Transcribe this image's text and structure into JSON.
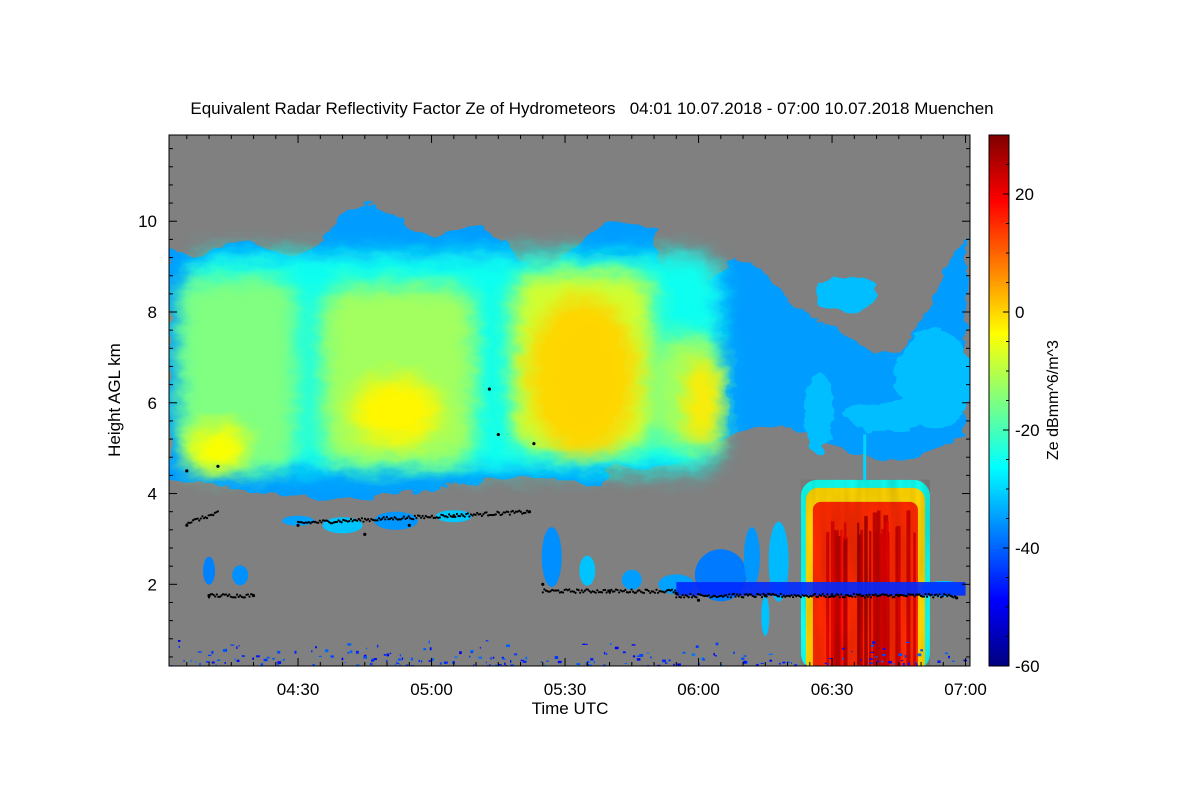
{
  "chart_data": {
    "type": "heatmap",
    "title": "Equivalent Radar Reflectivity Factor Ze of Hydrometeors   04:01 10.07.2018 - 07:00 10.07.2018 Muenchen",
    "xlabel": "Time UTC",
    "ylabel": "Height AGL km",
    "x_range": [
      "04:01",
      "07:01"
    ],
    "y_range_km": [
      0.2,
      11.9
    ],
    "x_ticks": [
      "04:30",
      "05:00",
      "05:30",
      "06:00",
      "06:30",
      "07:00"
    ],
    "y_ticks": [
      2,
      4,
      6,
      8,
      10
    ],
    "colorbar": {
      "label": "Ze dBmm^6/m^3",
      "range": [
        -60,
        30
      ],
      "ticks": [
        20,
        0,
        -20,
        -40,
        -60
      ],
      "colormap": "jet"
    },
    "background_color": "#808080",
    "features": [
      {
        "kind": "upper cloud layer",
        "time_start": "04:01",
        "time_end": "07:00",
        "base_km": 4.1,
        "top_km": 9.7,
        "max_ze_dbz": 5
      },
      {
        "kind": "precipitation shaft",
        "time_start": "06:23",
        "time_end": "06:52",
        "base_km": 0.2,
        "top_km": 4.3,
        "max_ze_dbz": 28
      },
      {
        "kind": "low cloud layer",
        "time_start": "04:10",
        "time_end": "07:00",
        "base_km": 1.6,
        "top_km": 3.6,
        "max_ze_dbz": -30
      },
      {
        "kind": "near-surface clutter",
        "time_start": "04:01",
        "time_end": "07:00",
        "base_km": 0.2,
        "top_km": 0.8,
        "max_ze_dbz": -45
      }
    ],
    "cloud_base_markers": [
      {
        "time": "04:05",
        "height_km": 4.5
      },
      {
        "time": "04:12",
        "height_km": 4.6
      },
      {
        "time": "04:10",
        "height_km": 1.75
      },
      {
        "time": "04:20",
        "height_km": 1.75
      },
      {
        "time": "04:05",
        "height_km": 3.3
      },
      {
        "time": "04:30",
        "height_km": 3.3
      },
      {
        "time": "04:45",
        "height_km": 3.1
      },
      {
        "time": "04:55",
        "height_km": 3.3
      },
      {
        "time": "05:05",
        "height_km": 3.5
      },
      {
        "time": "05:22",
        "height_km": 3.6
      },
      {
        "time": "05:13",
        "height_km": 6.3
      },
      {
        "time": "05:15",
        "height_km": 5.3
      },
      {
        "time": "05:23",
        "height_km": 5.1
      },
      {
        "time": "05:25",
        "height_km": 2.0
      },
      {
        "time": "05:40",
        "height_km": 1.85
      },
      {
        "time": "05:55",
        "height_km": 1.8
      },
      {
        "time": "06:00",
        "height_km": 1.65
      },
      {
        "time": "06:15",
        "height_km": 1.75
      },
      {
        "time": "06:30",
        "height_km": 1.75
      },
      {
        "time": "06:45",
        "height_km": 1.75
      },
      {
        "time": "06:58",
        "height_km": 1.7
      }
    ]
  }
}
